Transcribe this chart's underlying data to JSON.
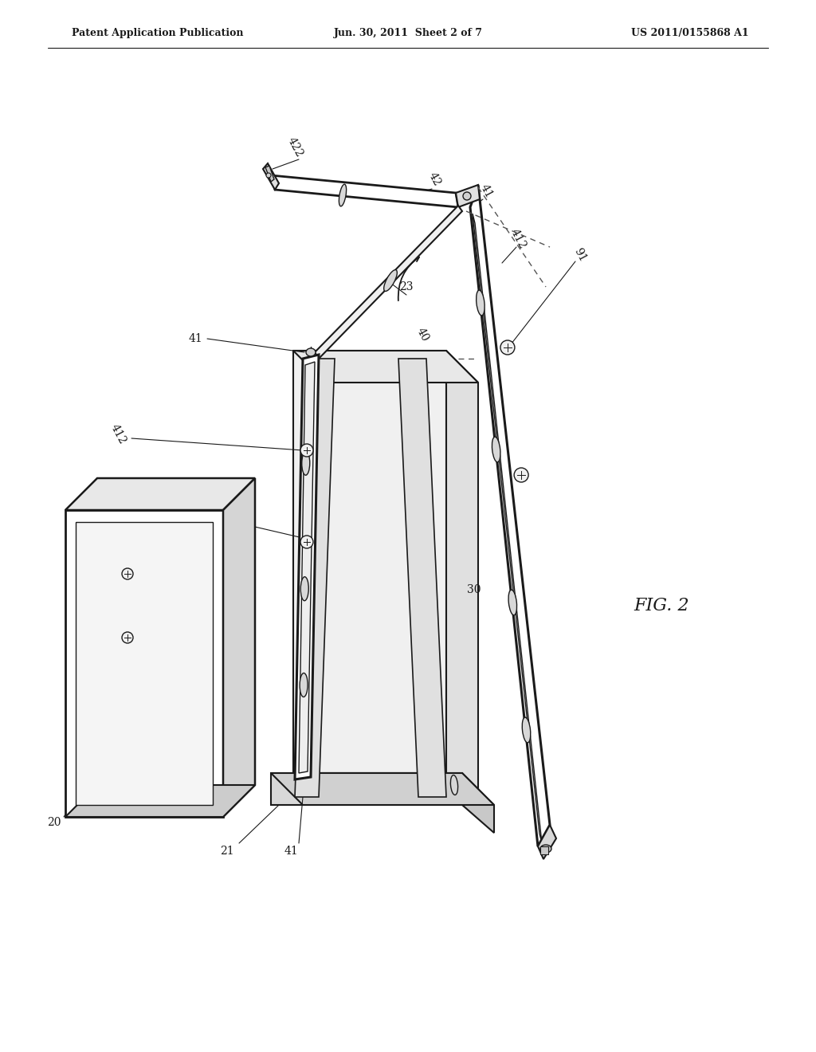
{
  "bg_color": "#ffffff",
  "line_color": "#1a1a1a",
  "header_left": "Patent Application Publication",
  "header_mid": "Jun. 30, 2011  Sheet 2 of 7",
  "header_right": "US 2011/0155868 A1",
  "fig_label": "FIG. 2"
}
